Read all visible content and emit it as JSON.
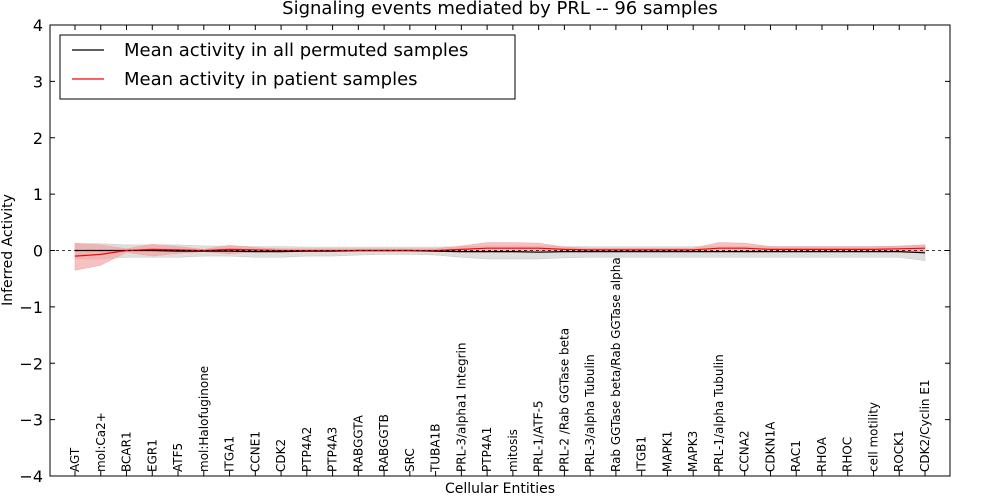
{
  "chart_data": {
    "type": "line",
    "title": "Signaling events mediated by PRL -- 96 samples",
    "xlabel": "Cellular Entities",
    "ylabel": "Inferred Activity",
    "ylim": [
      -4,
      4
    ],
    "yticks": [
      -4,
      -3,
      -2,
      -1,
      0,
      1,
      2,
      3,
      4
    ],
    "ytick_labels": [
      "−4",
      "−3",
      "−2",
      "−1",
      "0",
      "1",
      "2",
      "3",
      "4"
    ],
    "grid": false,
    "legend_position": "top-left",
    "categories": [
      "AGT",
      "mol:Ca2+",
      "BCAR1",
      "EGR1",
      "ATF5",
      "mol:Halofuginone",
      "ITGA1",
      "CCNE1",
      "CDK2",
      "PTP4A2",
      "PTP4A3",
      "RABGGTA",
      "RABGGTB",
      "SRC",
      "TUBA1B",
      "PRL-3/alpha1 Integrin",
      "PTP4A1",
      "mitosis",
      "PRL-1/ATF-5",
      "PRL-2 /Rab GGTase beta",
      "PRL-3/alpha Tubulin",
      "Rab GGTase beta/Rab GGTase alpha",
      "ITGB1",
      "MAPK1",
      "MAPK3",
      "PRL-1/alpha Tubulin",
      "CCNA2",
      "CDKN1A",
      "RAC1",
      "RHOA",
      "RHOC",
      "cell motility",
      "ROCK1",
      "CDK2/Cyclin E1"
    ],
    "series": [
      {
        "name": "Mean activity in all permuted samples",
        "color": "#000000",
        "band_color": "#c8c8c8",
        "values": [
          0.0,
          0.0,
          0.0,
          0.0,
          -0.01,
          -0.01,
          -0.01,
          -0.02,
          -0.02,
          -0.01,
          -0.01,
          0.0,
          0.0,
          0.0,
          -0.01,
          -0.02,
          -0.02,
          -0.02,
          -0.03,
          -0.02,
          -0.02,
          -0.02,
          -0.02,
          -0.02,
          -0.02,
          -0.02,
          -0.02,
          -0.02,
          -0.02,
          -0.02,
          -0.02,
          -0.02,
          -0.02,
          -0.04
        ],
        "lower": [
          -0.15,
          -0.15,
          -0.12,
          -0.12,
          -0.12,
          -0.1,
          -0.1,
          -0.12,
          -0.12,
          -0.1,
          -0.1,
          -0.08,
          -0.07,
          -0.07,
          -0.08,
          -0.12,
          -0.15,
          -0.15,
          -0.15,
          -0.13,
          -0.12,
          -0.12,
          -0.12,
          -0.12,
          -0.12,
          -0.12,
          -0.12,
          -0.12,
          -0.12,
          -0.12,
          -0.12,
          -0.12,
          -0.12,
          -0.18
        ],
        "upper": [
          0.12,
          0.12,
          0.1,
          0.1,
          0.1,
          0.08,
          0.08,
          0.07,
          0.07,
          0.06,
          0.06,
          0.06,
          0.06,
          0.06,
          0.06,
          0.07,
          0.08,
          0.08,
          0.08,
          0.07,
          0.07,
          0.07,
          0.07,
          0.07,
          0.07,
          0.07,
          0.07,
          0.07,
          0.07,
          0.07,
          0.07,
          0.07,
          0.07,
          0.1
        ]
      },
      {
        "name": "Mean activity in patient samples",
        "color": "#ff0000",
        "band_color": "#f4a0a0",
        "values": [
          -0.1,
          -0.07,
          0.0,
          0.02,
          0.01,
          0.0,
          0.02,
          0.01,
          0.0,
          0.0,
          0.0,
          0.0,
          0.0,
          0.0,
          0.0,
          0.02,
          0.04,
          0.04,
          0.04,
          0.02,
          0.01,
          0.01,
          0.01,
          0.01,
          0.01,
          0.04,
          0.04,
          0.02,
          0.02,
          0.02,
          0.02,
          0.02,
          0.03,
          0.04
        ],
        "lower": [
          -0.35,
          -0.26,
          -0.03,
          -0.1,
          -0.05,
          -0.02,
          -0.06,
          -0.02,
          -0.02,
          -0.02,
          -0.02,
          -0.02,
          -0.02,
          -0.02,
          -0.02,
          -0.03,
          -0.03,
          -0.03,
          -0.03,
          -0.02,
          -0.02,
          -0.02,
          -0.02,
          -0.02,
          -0.02,
          -0.02,
          -0.02,
          -0.02,
          -0.02,
          -0.02,
          -0.02,
          -0.02,
          -0.02,
          -0.02
        ],
        "upper": [
          0.13,
          0.1,
          0.03,
          0.11,
          0.07,
          0.02,
          0.09,
          0.05,
          0.03,
          0.03,
          0.03,
          0.03,
          0.03,
          0.03,
          0.03,
          0.08,
          0.14,
          0.14,
          0.13,
          0.06,
          0.04,
          0.04,
          0.04,
          0.04,
          0.04,
          0.14,
          0.13,
          0.07,
          0.07,
          0.07,
          0.07,
          0.07,
          0.08,
          0.1
        ]
      }
    ]
  }
}
